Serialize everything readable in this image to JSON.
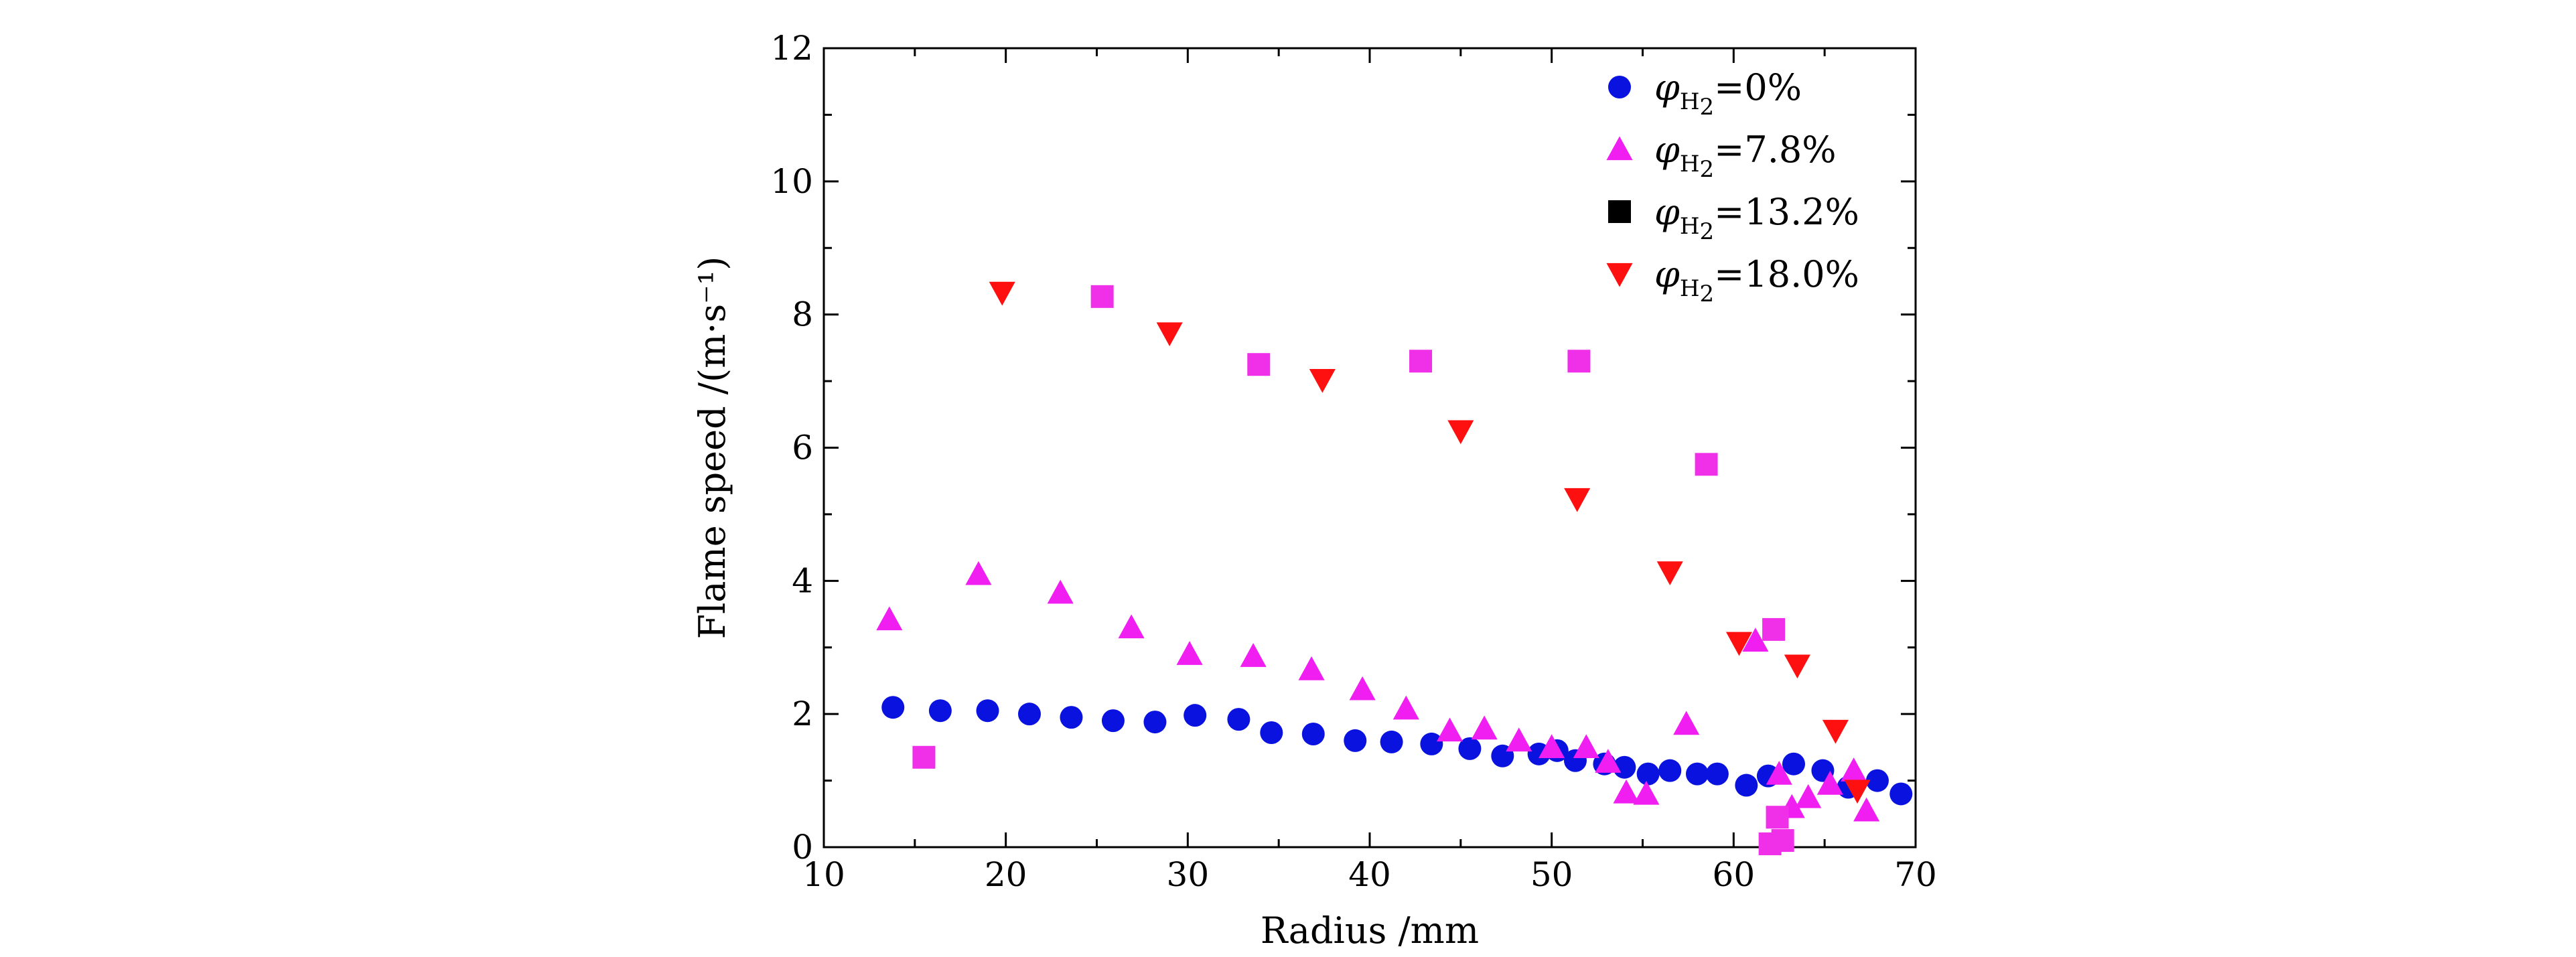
{
  "chart_data": {
    "type": "scatter",
    "xlabel": "Radius /mm",
    "ylabel": "Flame speed /(m·s⁻¹)",
    "xlim": [
      10,
      70
    ],
    "ylim": [
      0,
      12
    ],
    "x_ticks": [
      "10",
      "20",
      "30",
      "40",
      "50",
      "60",
      "70"
    ],
    "y_ticks": [
      "0",
      "2",
      "4",
      "6",
      "8",
      "10",
      "12"
    ],
    "grid": false,
    "legend_position": "top-right",
    "series": [
      {
        "name": "φH₂=0%",
        "legend": {
          "symbol": "φ",
          "sub": "H",
          "subsub": "2",
          "rest": "=0%"
        },
        "marker": "circle",
        "color": "#0a12e0",
        "points": [
          [
            13.8,
            2.1
          ],
          [
            16.4,
            2.05
          ],
          [
            19.0,
            2.05
          ],
          [
            21.3,
            2.0
          ],
          [
            23.6,
            1.95
          ],
          [
            25.9,
            1.9
          ],
          [
            28.2,
            1.88
          ],
          [
            30.4,
            1.98
          ],
          [
            32.8,
            1.92
          ],
          [
            34.6,
            1.72
          ],
          [
            36.9,
            1.7
          ],
          [
            39.2,
            1.6
          ],
          [
            41.2,
            1.58
          ],
          [
            43.4,
            1.55
          ],
          [
            45.5,
            1.48
          ],
          [
            47.3,
            1.37
          ],
          [
            49.3,
            1.4
          ],
          [
            50.3,
            1.45
          ],
          [
            51.3,
            1.3
          ],
          [
            52.9,
            1.25
          ],
          [
            54.0,
            1.2
          ],
          [
            55.3,
            1.1
          ],
          [
            56.5,
            1.15
          ],
          [
            58.0,
            1.1
          ],
          [
            59.1,
            1.1
          ],
          [
            60.7,
            0.93
          ],
          [
            61.9,
            1.07
          ],
          [
            63.3,
            1.25
          ],
          [
            64.9,
            1.15
          ],
          [
            66.3,
            0.9
          ],
          [
            67.9,
            1.0
          ],
          [
            69.2,
            0.8
          ]
        ]
      },
      {
        "name": "φH₂=7.8%",
        "legend": {
          "symbol": "φ",
          "sub": "H",
          "subsub": "2",
          "rest": "=7.8%"
        },
        "marker": "triangle-up",
        "color": "#f01ef0",
        "points": [
          [
            13.6,
            3.42
          ],
          [
            18.5,
            4.1
          ],
          [
            23.0,
            3.82
          ],
          [
            26.9,
            3.3
          ],
          [
            30.1,
            2.9
          ],
          [
            33.6,
            2.87
          ],
          [
            36.8,
            2.67
          ],
          [
            39.6,
            2.37
          ],
          [
            42.0,
            2.08
          ],
          [
            44.4,
            1.75
          ],
          [
            46.3,
            1.78
          ],
          [
            48.2,
            1.6
          ],
          [
            50.0,
            1.5
          ],
          [
            51.9,
            1.5
          ],
          [
            53.1,
            1.28
          ],
          [
            54.1,
            0.82
          ],
          [
            55.2,
            0.8
          ],
          [
            57.4,
            1.85
          ],
          [
            61.2,
            3.1
          ],
          [
            62.5,
            1.1
          ],
          [
            63.2,
            0.6
          ],
          [
            64.1,
            0.75
          ],
          [
            65.3,
            0.95
          ],
          [
            66.6,
            1.15
          ],
          [
            67.3,
            0.55
          ]
        ]
      },
      {
        "name": "φH₂=13.2%",
        "legend": {
          "symbol": "φ",
          "sub": "H",
          "subsub": "2",
          "rest": "=13.2%"
        },
        "marker": "square",
        "color": "#f030e8",
        "legend_color": "#000000",
        "points": [
          [
            15.5,
            1.35
          ],
          [
            25.3,
            8.27
          ],
          [
            33.9,
            7.25
          ],
          [
            42.8,
            7.3
          ],
          [
            51.5,
            7.3
          ],
          [
            58.5,
            5.75
          ],
          [
            62.2,
            3.27
          ],
          [
            62.4,
            0.45
          ],
          [
            62.0,
            0.05
          ],
          [
            62.7,
            0.1
          ]
        ]
      },
      {
        "name": "φH₂=18.0%",
        "legend": {
          "symbol": "φ",
          "sub": "H",
          "subsub": "2",
          "rest": "=18.0%"
        },
        "marker": "triangle-down",
        "color": "#ff1010",
        "points": [
          [
            19.8,
            8.33
          ],
          [
            29.0,
            7.72
          ],
          [
            37.4,
            7.02
          ],
          [
            45.0,
            6.25
          ],
          [
            51.4,
            5.23
          ],
          [
            56.5,
            4.13
          ],
          [
            60.3,
            3.07
          ],
          [
            63.5,
            2.73
          ],
          [
            65.6,
            1.75
          ],
          [
            66.8,
            0.85
          ]
        ]
      }
    ]
  }
}
